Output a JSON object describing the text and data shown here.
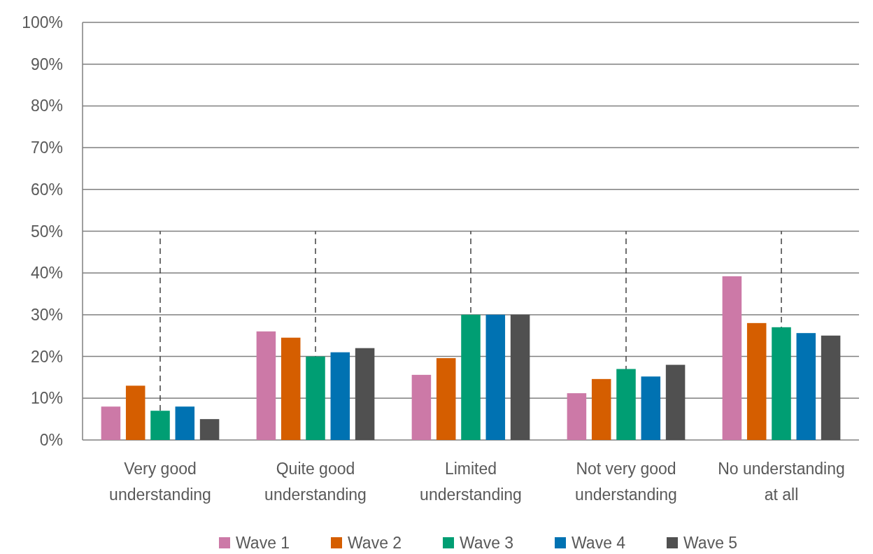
{
  "chart_data": {
    "type": "bar",
    "categories": [
      "Very good understanding",
      "Quite good understanding",
      "Limited understanding",
      "Not very good understanding",
      "No understanding at all"
    ],
    "series": [
      {
        "name": "Wave 1",
        "color": "#cc79a7",
        "values": [
          8,
          26,
          15.6,
          11.2,
          39.2
        ]
      },
      {
        "name": "Wave 2",
        "color": "#d55e00",
        "values": [
          13,
          24.5,
          19.6,
          14.6,
          28
        ]
      },
      {
        "name": "Wave 3",
        "color": "#009e73",
        "values": [
          7,
          20,
          30,
          17,
          27
        ]
      },
      {
        "name": "Wave 4",
        "color": "#0072b2",
        "values": [
          8,
          21,
          30,
          15.2,
          25.6
        ]
      },
      {
        "name": "Wave 5",
        "color": "#505050",
        "values": [
          5,
          22,
          30,
          18,
          25
        ]
      }
    ],
    "ylim": [
      0,
      100
    ],
    "yticks": [
      {
        "value": 0,
        "label": "0%"
      },
      {
        "value": 10,
        "label": "10%"
      },
      {
        "value": 20,
        "label": "20%"
      },
      {
        "value": 30,
        "label": "30%"
      },
      {
        "value": 40,
        "label": "40%"
      },
      {
        "value": 50,
        "label": "50%"
      },
      {
        "value": 60,
        "label": "60%"
      },
      {
        "value": 70,
        "label": "70%"
      },
      {
        "value": 80,
        "label": "80%"
      },
      {
        "value": 90,
        "label": "90%"
      },
      {
        "value": 100,
        "label": "100%"
      }
    ],
    "ref_lines": [
      {
        "axis": "x",
        "value": "Very good understanding",
        "color": "#404040",
        "line_style": "dashed"
      },
      {
        "axis": "x",
        "value": "Quite good understanding",
        "color": "#404040",
        "line_style": "dashed"
      },
      {
        "axis": "x",
        "value": "Limited understanding",
        "color": "#404040",
        "line_style": "dashed"
      },
      {
        "axis": "x",
        "value": "Not very good understanding",
        "color": "#404040",
        "line_style": "dashed"
      },
      {
        "axis": "x",
        "value": "No understanding at all",
        "color": "#404040",
        "line_style": "dashed"
      }
    ],
    "grid": "y",
    "legend": "bottom"
  }
}
